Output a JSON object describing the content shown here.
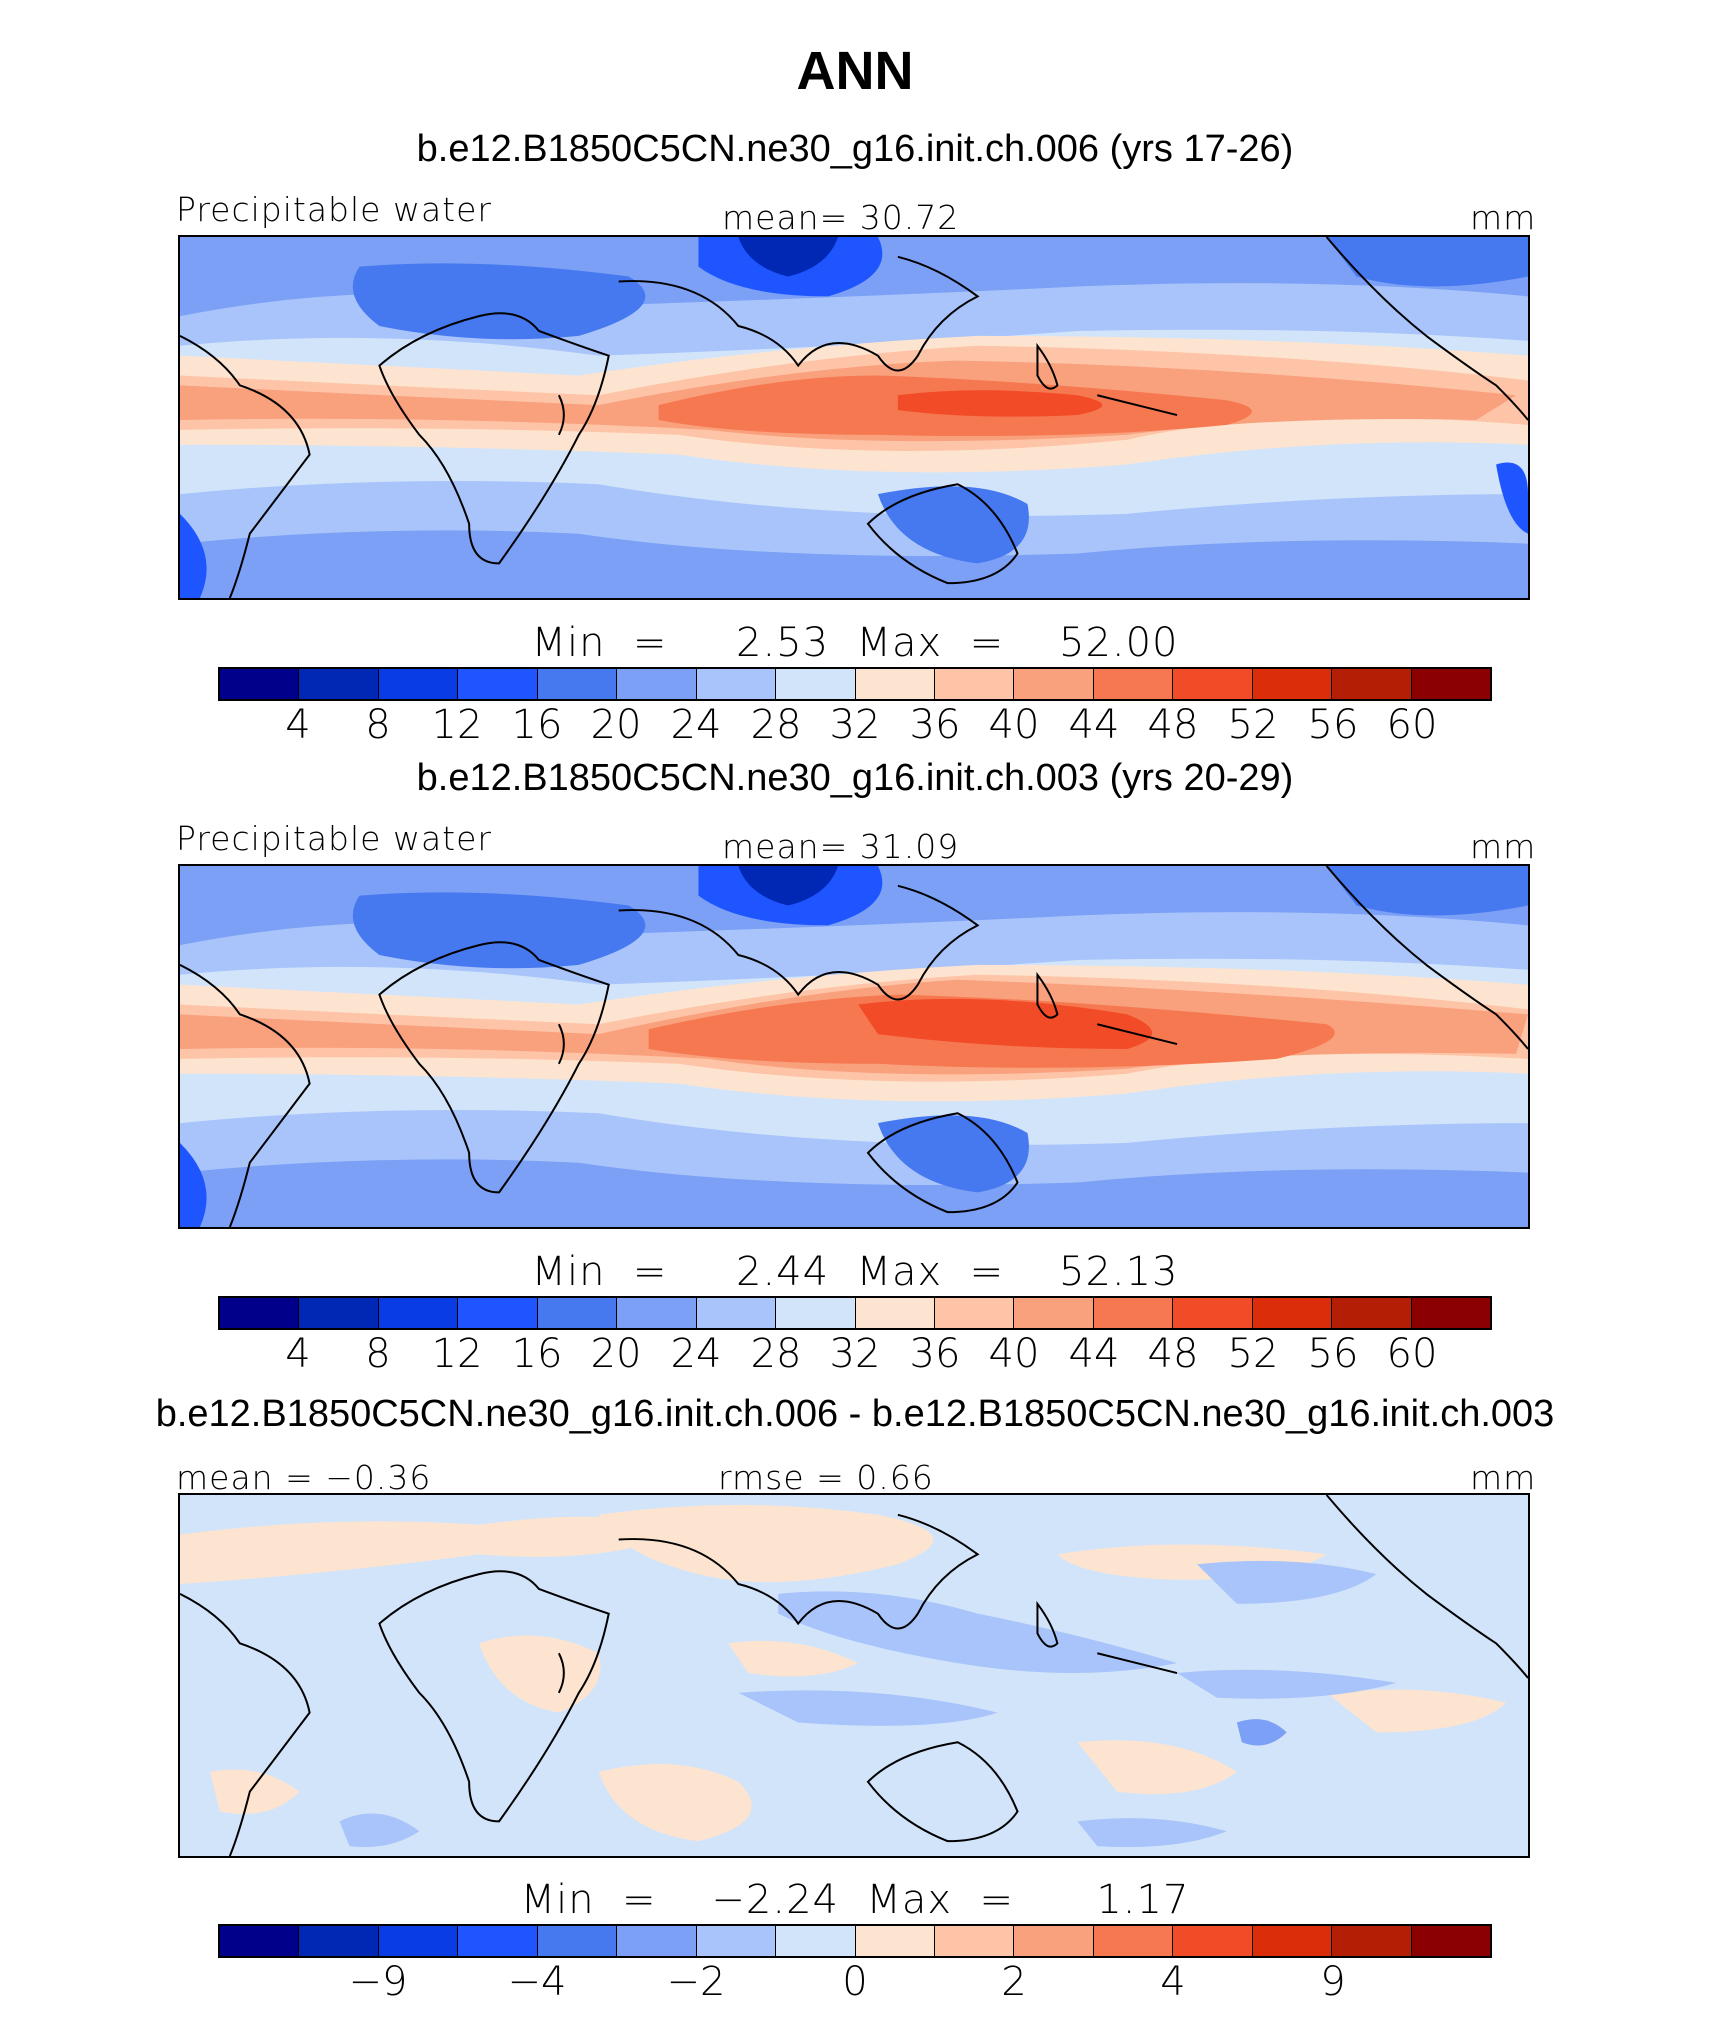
{
  "figure": {
    "title": "ANN"
  },
  "palette": [
    "#00008b",
    "#0028b4",
    "#0a3ce6",
    "#1e55ff",
    "#4678f0",
    "#7ba0f5",
    "#a8c4fa",
    "#d2e4fa",
    "#fde4d0",
    "#fdc4a8",
    "#f9a07d",
    "#f57850",
    "#f24b28",
    "#dc2d0a",
    "#b41e05",
    "#8b0000"
  ],
  "panels": [
    {
      "case_title": "b.e12.B1850C5CN.ne30_g16.init.ch.006 (yrs 17-26)",
      "left_label": "Precipitable water",
      "center_label": "mean=   30.72",
      "units": "mm",
      "min_max": "Min  =     2.53  Max  =    52.00",
      "colorbar_ticks": [
        "4",
        "8",
        "12",
        "16",
        "20",
        "24",
        "28",
        "32",
        "36",
        "40",
        "44",
        "48",
        "52",
        "56",
        "60"
      ]
    },
    {
      "case_title": "b.e12.B1850C5CN.ne30_g16.init.ch.003 (yrs 20-29)",
      "left_label": "Precipitable water",
      "center_label": "mean=   31.09",
      "units": "mm",
      "min_max": "Min  =     2.44  Max  =    52.13",
      "colorbar_ticks": [
        "4",
        "8",
        "12",
        "16",
        "20",
        "24",
        "28",
        "32",
        "36",
        "40",
        "44",
        "48",
        "52",
        "56",
        "60"
      ]
    },
    {
      "case_title": "b.e12.B1850C5CN.ne30_g16.init.ch.006 - b.e12.B1850C5CN.ne30_g16.init.ch.003",
      "left_label": "mean  =   −0.36",
      "center_label": "rmse  =     0.66",
      "units": "mm",
      "min_max": "Min  =    −2.24  Max  =      1.17",
      "colorbar_ticks": [
        "−9",
        "−4",
        "−2",
        "0",
        "2",
        "4",
        "9"
      ]
    }
  ]
}
